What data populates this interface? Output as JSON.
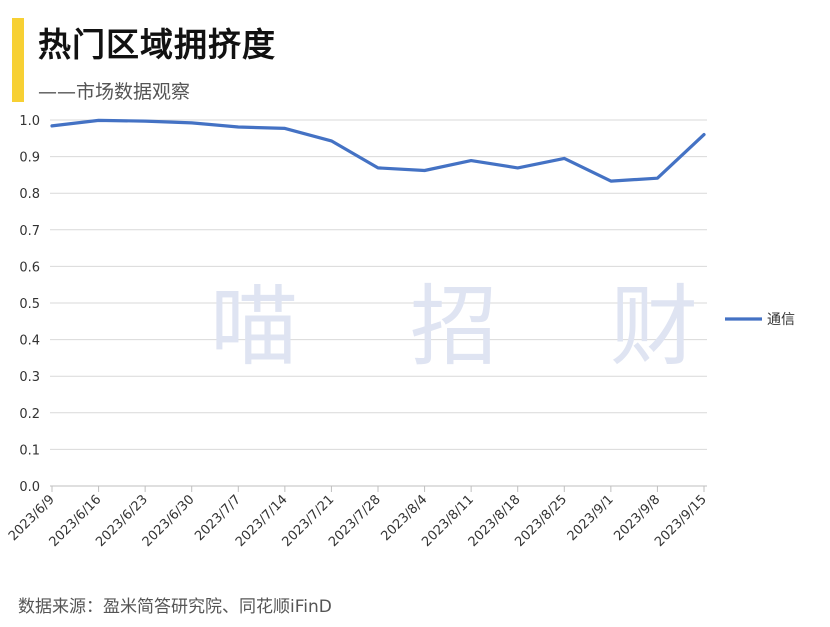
{
  "header": {
    "title": "热门区域拥挤度",
    "subtitle": "——市场数据观察"
  },
  "watermark": "喵 招 财",
  "footer": {
    "source": "数据来源：盈米简答研究院、同花顺iFinD"
  },
  "colors": {
    "accent": "#f7d033",
    "series_line": "#4472c4",
    "grid": "#d9d9d9",
    "watermark": "#dfe4f2"
  },
  "chart_data": {
    "type": "line",
    "title": "热门区域拥挤度",
    "subtitle": "——市场数据观察",
    "xlabel": "",
    "ylabel": "",
    "ylim": [
      0,
      1.0
    ],
    "yticks": [
      "0.0",
      "0.1",
      "0.2",
      "0.3",
      "0.4",
      "0.5",
      "0.6",
      "0.7",
      "0.8",
      "0.9",
      "1.0"
    ],
    "grid": true,
    "legend_position": "right",
    "categories": [
      "2023/6/9",
      "2023/6/16",
      "2023/6/23",
      "2023/6/30",
      "2023/7/7",
      "2023/7/14",
      "2023/7/21",
      "2023/7/28",
      "2023/8/4",
      "2023/8/11",
      "2023/8/18",
      "2023/8/25",
      "2023/9/1",
      "2023/9/8",
      "2023/9/15"
    ],
    "series": [
      {
        "name": "通信",
        "values": [
          0.984,
          0.999,
          0.997,
          0.992,
          0.981,
          0.977,
          0.943,
          0.869,
          0.862,
          0.889,
          0.869,
          0.895,
          0.833,
          0.841,
          0.96
        ]
      }
    ]
  }
}
